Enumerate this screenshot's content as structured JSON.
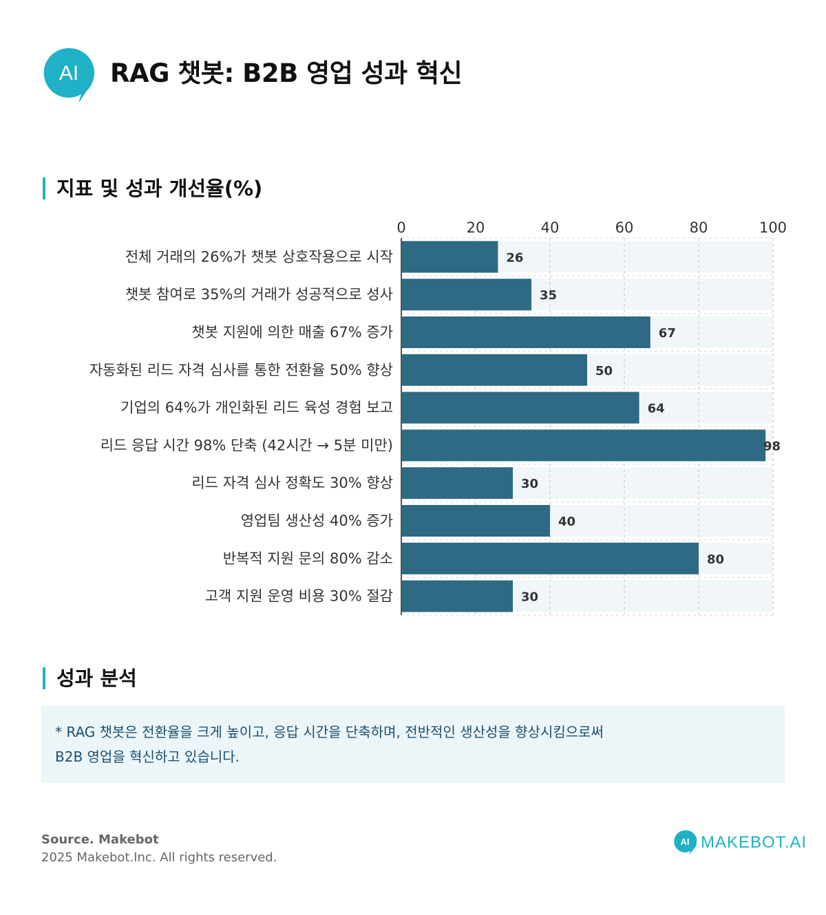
{
  "header": {
    "logo_text": "AI",
    "title": "RAG 챗봇: B2B 영업 성과 혁신"
  },
  "section1": {
    "title": "지표 및 성과 개선율(%)"
  },
  "chart_data": {
    "type": "bar",
    "orientation": "horizontal",
    "title": "지표 및 성과 개선율(%)",
    "xlim": [
      0,
      100
    ],
    "ticks": [
      "0",
      "20",
      "40",
      "60",
      "80",
      "100"
    ],
    "tick_values": [
      0,
      20,
      40,
      60,
      80,
      100
    ],
    "categories": [
      "전체 거래의 26%가 챗봇 상호작용으로 시작",
      "챗봇 참여로 35%의 거래가 성공적으로 성사",
      "챗봇 지원에 의한 매출 67% 증가",
      "자동화된 리드 자격 심사를 통한 전환율 50% 향상",
      "기업의 64%가 개인화된 리드 육성 경험 보고",
      "리드 응답 시간 98% 단축 (42시간 → 5분 미만)",
      "리드 자격 심사 정확도 30% 향상",
      "영업팀 생산성 40% 증가",
      "반복적 지원 문의 80% 감소",
      "고객 지원 운영 비용 30% 절감"
    ],
    "values": [
      26,
      35,
      67,
      50,
      64,
      98,
      30,
      40,
      80,
      30
    ],
    "grid": true,
    "bar_color": "#2e6a84",
    "background_color": "#f1f7f9"
  },
  "section2": {
    "title": "성과 분석"
  },
  "analysis": {
    "line1": "* RAG 챗봇은 전환율을 크게 높이고, 응답 시간을 단축하며, 전반적인 생산성을 향상시킴으로써",
    "line2": "B2B 영업을 혁신하고 있습니다."
  },
  "footer": {
    "source": "Source. Makebot",
    "copyright": "2025 Makebot.Inc. All rights reserved.",
    "brand_icon_text": "AI",
    "brand": "MAKEBOT.AI"
  },
  "colors": {
    "accent": "#1fb1c6",
    "bar": "#2e6a84",
    "note_bg": "#ecf5f8",
    "note_text": "#1b4f72"
  }
}
